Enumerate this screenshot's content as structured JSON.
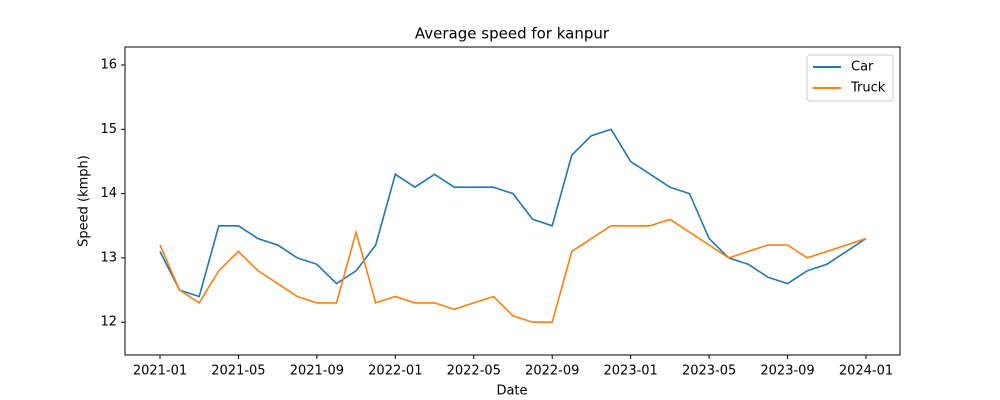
{
  "chart_data": {
    "type": "line",
    "title": "Average speed for kanpur",
    "xlabel": "Date",
    "ylabel": "Speed (kmph)",
    "x": [
      "2021-01",
      "2021-02",
      "2021-03",
      "2021-04",
      "2021-05",
      "2021-06",
      "2021-07",
      "2021-08",
      "2021-09",
      "2021-10",
      "2021-11",
      "2021-12",
      "2022-01",
      "2022-02",
      "2022-03",
      "2022-04",
      "2022-05",
      "2022-06",
      "2022-07",
      "2022-08",
      "2022-09",
      "2022-10",
      "2022-11",
      "2022-12",
      "2023-01",
      "2023-02",
      "2023-03",
      "2023-04",
      "2023-05",
      "2023-06",
      "2023-07",
      "2023-08",
      "2023-09",
      "2023-10",
      "2023-11",
      "2023-12",
      "2024-01"
    ],
    "series": [
      {
        "name": "Car",
        "color": "#1f77b4",
        "values": [
          13.1,
          12.5,
          12.4,
          13.5,
          13.5,
          13.3,
          13.2,
          13.0,
          12.9,
          12.6,
          12.8,
          13.2,
          14.3,
          14.1,
          14.3,
          14.1,
          14.1,
          14.1,
          14.0,
          13.6,
          13.5,
          14.6,
          14.9,
          15.0,
          14.5,
          14.3,
          14.1,
          14.0,
          13.3,
          13.0,
          12.9,
          12.7,
          12.6,
          12.8,
          12.9,
          13.1,
          13.3
        ]
      },
      {
        "name": "Truck",
        "color": "#ff7f0e",
        "values": [
          13.2,
          12.5,
          12.3,
          12.8,
          13.1,
          12.8,
          12.6,
          12.4,
          12.3,
          12.3,
          13.4,
          12.3,
          12.4,
          12.3,
          12.3,
          12.2,
          12.3,
          12.4,
          12.1,
          12.0,
          12.0,
          13.1,
          13.3,
          13.5,
          13.5,
          13.5,
          13.6,
          13.4,
          13.2,
          13.0,
          13.1,
          13.2,
          13.2,
          13.0,
          13.1,
          13.2,
          13.3
        ]
      }
    ],
    "xticks": [
      "2021-01",
      "2021-05",
      "2021-09",
      "2022-01",
      "2022-05",
      "2022-09",
      "2023-01",
      "2023-05",
      "2023-09",
      "2024-01"
    ],
    "ylim": [
      11.49,
      16.28
    ],
    "yticks": [
      12,
      13,
      14,
      15,
      16
    ],
    "legend": "upper right"
  }
}
